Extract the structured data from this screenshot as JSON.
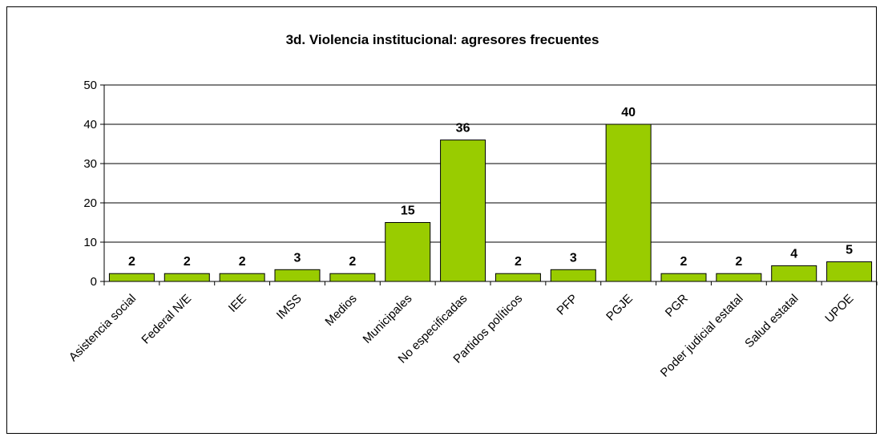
{
  "chart_data": {
    "type": "bar",
    "title": "3d. Violencia institucional: agresores frecuentes",
    "categories": [
      "Asistencia social",
      "Federal N/E",
      "IEE",
      "IMSS",
      "Medios",
      "Municipales",
      "No especificadas",
      "Partidos políticos",
      "PFP",
      "PGJE",
      "PGR",
      "Poder judicial estatal",
      "Salud estatal",
      "UPOE"
    ],
    "values": [
      2,
      2,
      2,
      3,
      2,
      15,
      36,
      2,
      3,
      40,
      2,
      2,
      4,
      5
    ],
    "ylim": [
      0,
      50
    ],
    "yticks": [
      0,
      10,
      20,
      30,
      40,
      50
    ],
    "grid": true,
    "bar_color": "#99CC00",
    "bar_edge_color": "#000000",
    "data_labels": true
  }
}
